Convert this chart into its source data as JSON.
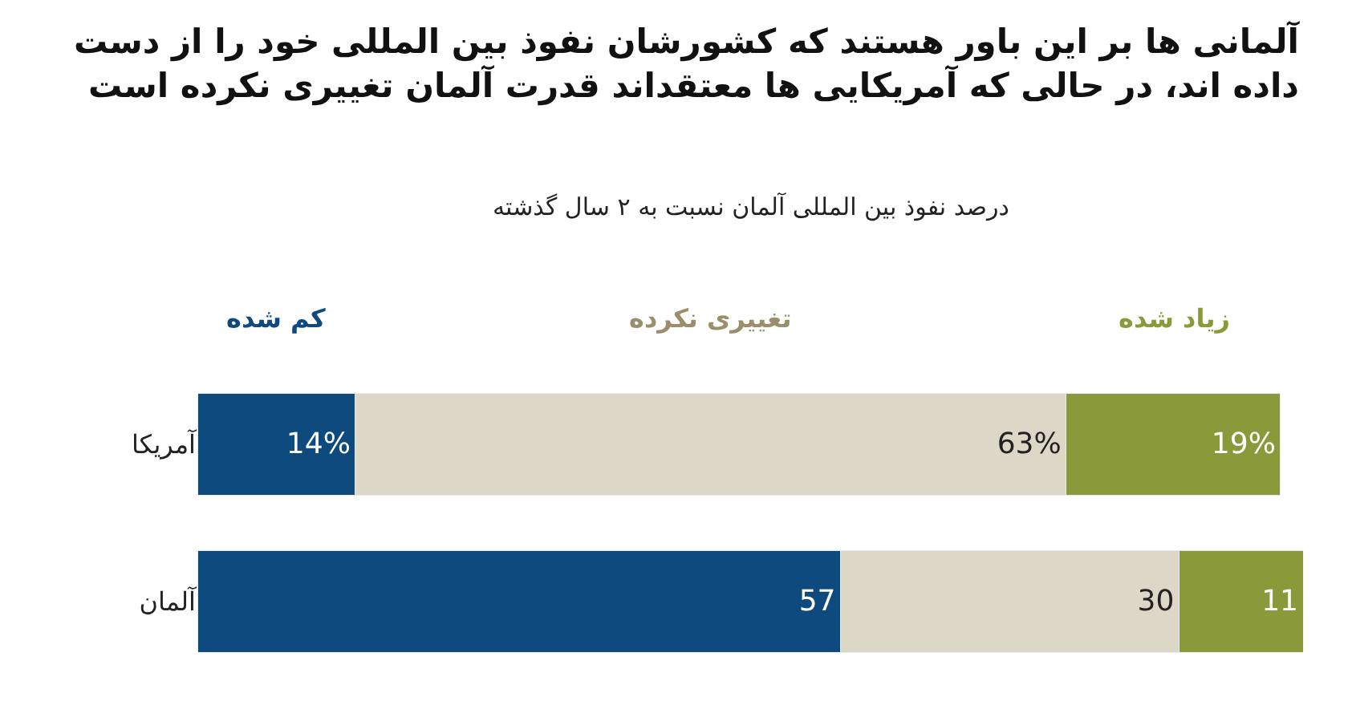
{
  "chart_data": {
    "type": "bar",
    "orientation": "horizontal",
    "stacked": true,
    "title": "آلمانی ها بر این باور هستند که کشورشان نفوذ بین المللی خود را از دست\nداده اند، در حالی که آمریکایی ها معتقداند قدرت آلمان تغییری نکرده است",
    "subtitle": "درصد نفوذ بین المللی آلمان نسبت به ۲ سال گذشته",
    "categories": [
      "آمریکا",
      "آلمان"
    ],
    "xlim": [
      0,
      98
    ],
    "tick_labels": "y",
    "series": [
      {
        "name": "کم شده",
        "color": "#0e4a7e",
        "values": [
          14,
          57
        ],
        "value_labels": [
          "14%",
          "57"
        ]
      },
      {
        "name": "تغییری نکرده",
        "color": "#ddd7c7",
        "values": [
          63,
          30
        ],
        "value_labels": [
          "63%",
          "30"
        ]
      },
      {
        "name": "زیاد شده",
        "color": "#8a9a3a",
        "values": [
          19,
          11
        ],
        "value_labels": [
          "19%",
          "11"
        ]
      }
    ]
  }
}
